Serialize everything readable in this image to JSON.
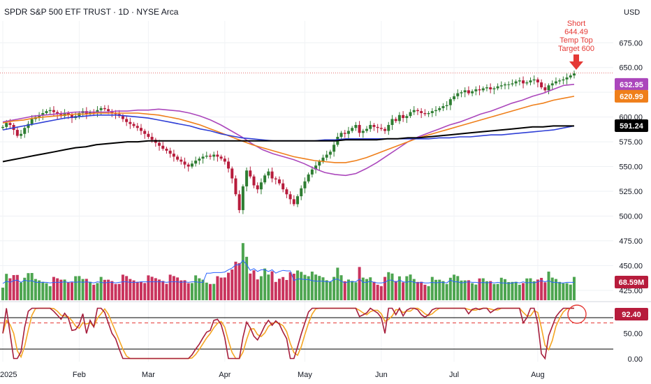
{
  "header": {
    "title": "SPDR S&P 500 ETF TRUST · 1D · NYSE Arca",
    "currency": "USD"
  },
  "annotation": {
    "lines": [
      "Short",
      "644.49",
      "Temp Top",
      "Target 600"
    ]
  },
  "colors": {
    "up": "#2e7d32",
    "down": "#b71c3c",
    "ma_fast": "#ab47bc",
    "ma_mid": "#ef7f1a",
    "ma_slow_blue": "#2f3fd6",
    "ma_long": "#000000",
    "stoch_k": "#a61e3c",
    "stoch_d": "#f5a623",
    "volume_ma": "#2962ff",
    "annotation": "#e53935"
  },
  "chart_data": {
    "type": "candlestick",
    "title": "SPDR S&P 500 ETF TRUST · 1D · NYSE Arca",
    "currency": "USD",
    "x_ticks": [
      "2025",
      "Feb",
      "Mar",
      "Apr",
      "May",
      "Jun",
      "Jul",
      "Aug"
    ],
    "x_tick_index": [
      0,
      21,
      40,
      61,
      83,
      104,
      124,
      147
    ],
    "y_ticks": [
      "675.00",
      "650.00",
      "625.00",
      "600.00",
      "575.00",
      "550.00",
      "525.00",
      "500.00",
      "475.00",
      "450.00",
      "425.00"
    ],
    "ylim": [
      415,
      690
    ],
    "closes": [
      590,
      594,
      592,
      587,
      581,
      583,
      589,
      593,
      598,
      600,
      602,
      604,
      606,
      607,
      605,
      603,
      601,
      604,
      602,
      599,
      601,
      604,
      606,
      603,
      605,
      604,
      607,
      609,
      608,
      606,
      604,
      603,
      601,
      598,
      595,
      593,
      591,
      589,
      586,
      583,
      580,
      577,
      574,
      571,
      568,
      566,
      563,
      560,
      557,
      555,
      552,
      550,
      553,
      556,
      558,
      560,
      561,
      560,
      562,
      560,
      558,
      555,
      548,
      538,
      522,
      506,
      530,
      546,
      540,
      531,
      527,
      534,
      541,
      545,
      538,
      537,
      533,
      527,
      522,
      517,
      512,
      520,
      528,
      535,
      542,
      547,
      551,
      555,
      559,
      562,
      565,
      572,
      580,
      584,
      583,
      586,
      589,
      592,
      584,
      586,
      588,
      592,
      590,
      589,
      588,
      586,
      592,
      598,
      596,
      602,
      599,
      601,
      605,
      607,
      606,
      604,
      603,
      604,
      606,
      607,
      609,
      611,
      612,
      618,
      621,
      624,
      625,
      627,
      624,
      626,
      628,
      627,
      629,
      630,
      628,
      629,
      631,
      632,
      633,
      633,
      634,
      636,
      637,
      634,
      635,
      637,
      638,
      635,
      630,
      627,
      632,
      634,
      636,
      637,
      638,
      640,
      642,
      644
    ],
    "volume_ticks": [],
    "series": [
      {
        "name": "",
        "values": [
          595,
          597,
          599,
          601,
          602,
          603,
          604,
          605,
          605,
          605,
          605,
          606,
          606,
          607,
          607,
          608,
          607,
          606,
          604,
          601,
          597,
          592,
          586,
          580,
          573,
          567,
          563,
          560,
          557,
          553,
          548,
          544,
          542,
          541,
          543,
          548,
          554,
          561,
          568,
          575,
          580,
          584,
          588,
          592,
          595,
          599,
          603,
          606,
          610,
          614,
          617,
          621,
          624,
          628,
          632,
          633
        ]
      },
      {
        "name": "",
        "values": [
          594,
          596,
          597,
          599,
          600,
          601,
          602,
          603,
          603,
          604,
          604,
          604,
          604,
          604,
          603,
          602,
          600,
          598,
          595,
          592,
          588,
          584,
          580,
          576,
          572,
          569,
          566,
          563,
          560,
          558,
          556,
          555,
          554,
          554,
          556,
          559,
          563,
          567,
          571,
          575,
          579,
          582,
          585,
          588,
          591,
          594,
          597,
          600,
          603,
          606,
          609,
          612,
          614,
          617,
          619,
          621
        ]
      },
      {
        "name": "",
        "values": [
          587,
          589,
          591,
          593,
          595,
          597,
          599,
          600,
          601,
          602,
          602,
          602,
          601,
          600,
          599,
          597,
          595,
          593,
          591,
          588,
          586,
          583,
          581,
          579,
          578,
          577,
          576,
          576,
          576,
          576,
          576,
          577,
          577,
          578,
          578,
          578,
          578,
          578,
          578,
          578,
          578,
          578,
          579,
          579,
          580,
          580,
          581,
          582,
          582,
          583,
          584,
          585,
          586,
          587,
          589,
          591
        ]
      },
      {
        "name": "",
        "values": [
          555,
          557,
          559,
          561,
          563,
          565,
          567,
          569,
          570,
          572,
          573,
          574,
          575,
          575,
          576,
          576,
          576,
          576,
          576,
          576,
          576,
          576,
          576,
          576,
          576,
          576,
          576,
          576,
          576,
          576,
          576,
          576,
          576,
          577,
          577,
          577,
          577,
          578,
          578,
          579,
          579,
          580,
          581,
          582,
          583,
          584,
          585,
          586,
          587,
          588,
          589,
          590,
          590,
          591,
          591,
          591
        ]
      }
    ],
    "price_labels": [
      {
        "value": 632.95,
        "text": "632.95",
        "color": "#ab47bc"
      },
      {
        "value": 620.99,
        "text": "620.99",
        "color": "#ef7f1a"
      },
      {
        "value": 591.24,
        "text": "591.24",
        "color": "#000000"
      }
    ],
    "volume_label": "68.59M",
    "stoch_label": "92.40",
    "stoch_ticks": [
      "50.00",
      "0.00"
    ],
    "last_price_line": 644.49
  }
}
